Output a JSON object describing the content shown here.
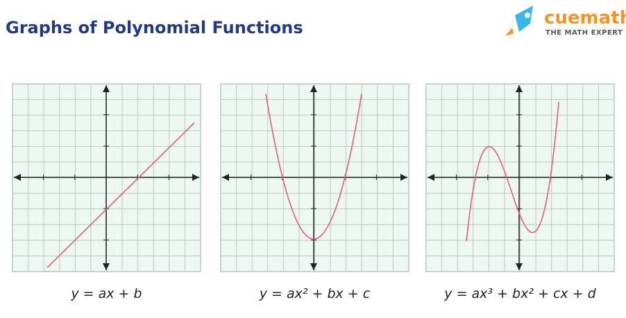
{
  "header": {
    "title": "Graphs of Polynomial Functions",
    "logo": {
      "name": "cuemath",
      "tagline": "THE MATH EXPERT"
    }
  },
  "graphs": [
    {
      "caption": "y = ax + b"
    },
    {
      "caption": "y = ax² + bx + c"
    },
    {
      "caption": "y = ax³ + bx² + cx + d"
    }
  ]
}
